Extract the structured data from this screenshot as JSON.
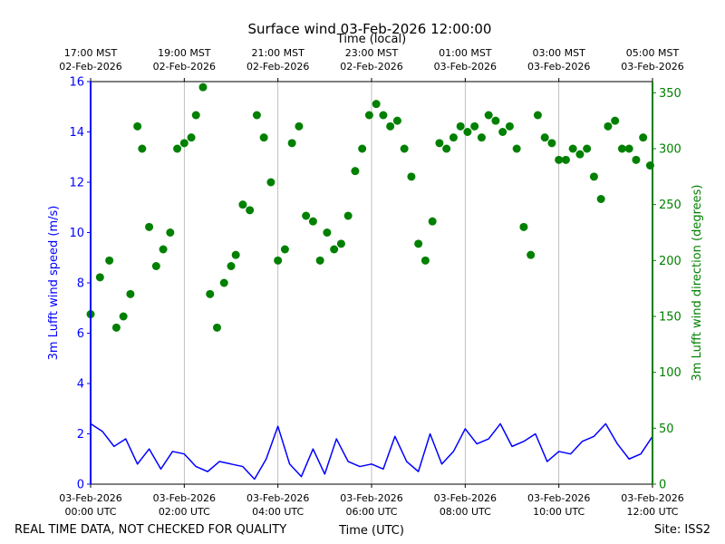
{
  "chart_data": {
    "type": "line+scatter",
    "title": "Surface wind 03-Feb-2026 12:00:00",
    "top_xlabel": "Time (local)",
    "xlabel": "Time (UTC)",
    "ylabel_left": "3m Lufft wind speed (m/s)",
    "ylabel_right": "3m Lufft wind direction (degrees)",
    "footer_left": "REAL TIME DATA, NOT CHECKED FOR QUALITY",
    "footer_right": "Site: ISS2",
    "xlim_hours_utc": [
      0,
      12
    ],
    "ylim_left": [
      0,
      16
    ],
    "ylim_right": [
      0,
      360
    ],
    "left_ticks": [
      "0",
      "2",
      "4",
      "6",
      "8",
      "10",
      "12",
      "14",
      "16"
    ],
    "right_ticks": [
      "0",
      "50",
      "100",
      "150",
      "200",
      "250",
      "300",
      "350"
    ],
    "bottom_ticks": [
      {
        "date": "03-Feb-2026",
        "time": "00:00 UTC"
      },
      {
        "date": "03-Feb-2026",
        "time": "02:00 UTC"
      },
      {
        "date": "03-Feb-2026",
        "time": "04:00 UTC"
      },
      {
        "date": "03-Feb-2026",
        "time": "06:00 UTC"
      },
      {
        "date": "03-Feb-2026",
        "time": "08:00 UTC"
      },
      {
        "date": "03-Feb-2026",
        "time": "10:00 UTC"
      },
      {
        "date": "03-Feb-2026",
        "time": "12:00 UTC"
      }
    ],
    "top_ticks": [
      {
        "time": "17:00 MST",
        "date": "02-Feb-2026"
      },
      {
        "time": "19:00 MST",
        "date": "02-Feb-2026"
      },
      {
        "time": "21:00 MST",
        "date": "02-Feb-2026"
      },
      {
        "time": "23:00 MST",
        "date": "02-Feb-2026"
      },
      {
        "time": "01:00 MST",
        "date": "03-Feb-2026"
      },
      {
        "time": "03:00 MST",
        "date": "03-Feb-2026"
      },
      {
        "time": "05:00 MST",
        "date": "03-Feb-2026"
      }
    ],
    "grid": "vertical",
    "series": [
      {
        "axis": "left",
        "style": "line",
        "color": "#0000ff",
        "x": [
          0,
          0.25,
          0.5,
          0.75,
          1,
          1.25,
          1.5,
          1.75,
          2,
          2.25,
          2.5,
          2.75,
          3,
          3.25,
          3.5,
          3.75,
          4,
          4.25,
          4.5,
          4.75,
          5,
          5.25,
          5.5,
          5.75,
          6,
          6.25,
          6.5,
          6.75,
          7,
          7.25,
          7.5,
          7.75,
          8,
          8.25,
          8.5,
          8.75,
          9,
          9.25,
          9.5,
          9.75,
          10,
          10.25,
          10.5,
          10.75,
          11,
          11.25,
          11.5,
          11.75,
          12
        ],
        "y": [
          2.4,
          2.1,
          1.5,
          1.8,
          0.8,
          1.4,
          0.6,
          1.3,
          1.2,
          0.7,
          0.5,
          0.9,
          0.8,
          0.7,
          0.2,
          1.0,
          2.3,
          0.8,
          0.3,
          1.4,
          0.4,
          1.8,
          0.9,
          0.7,
          0.8,
          0.6,
          1.9,
          0.9,
          0.5,
          2.0,
          0.8,
          1.3,
          2.2,
          1.6,
          1.8,
          2.4,
          1.5,
          1.7,
          2.0,
          0.9,
          1.3,
          1.2,
          1.7,
          1.9,
          2.4,
          1.6,
          1.0,
          1.2,
          1.9
        ]
      },
      {
        "axis": "right",
        "style": "scatter",
        "color": "#008000",
        "x": [
          0,
          0.2,
          0.4,
          0.55,
          0.7,
          0.85,
          1,
          1.1,
          1.25,
          1.4,
          1.55,
          1.7,
          1.85,
          2,
          2.15,
          2.25,
          2.4,
          2.55,
          2.7,
          2.85,
          3,
          3.1,
          3.25,
          3.4,
          3.55,
          3.7,
          3.85,
          4,
          4.15,
          4.3,
          4.45,
          4.6,
          4.75,
          4.9,
          5.05,
          5.2,
          5.35,
          5.5,
          5.65,
          5.8,
          5.95,
          6.1,
          6.25,
          6.4,
          6.55,
          6.7,
          6.85,
          7,
          7.15,
          7.3,
          7.45,
          7.6,
          7.75,
          7.9,
          8.05,
          8.2,
          8.35,
          8.5,
          8.65,
          8.8,
          8.95,
          9.1,
          9.25,
          9.4,
          9.55,
          9.7,
          9.85,
          10,
          10.15,
          10.3,
          10.45,
          10.6,
          10.75,
          10.9,
          11.05,
          11.2,
          11.35,
          11.5,
          11.65,
          11.8,
          11.95
        ],
        "y": [
          152,
          185,
          200,
          140,
          150,
          170,
          320,
          300,
          230,
          195,
          210,
          225,
          300,
          305,
          310,
          330,
          355,
          170,
          140,
          180,
          195,
          205,
          250,
          245,
          330,
          310,
          270,
          200,
          210,
          305,
          320,
          240,
          235,
          200,
          225,
          210,
          215,
          240,
          280,
          300,
          330,
          340,
          330,
          320,
          325,
          300,
          275,
          215,
          200,
          235,
          305,
          300,
          310,
          320,
          315,
          320,
          310,
          330,
          325,
          315,
          320,
          300,
          230,
          205,
          330,
          310,
          305,
          290,
          290,
          300,
          295,
          300,
          275,
          255,
          320,
          325,
          300,
          300,
          290,
          310,
          285
        ]
      }
    ]
  }
}
